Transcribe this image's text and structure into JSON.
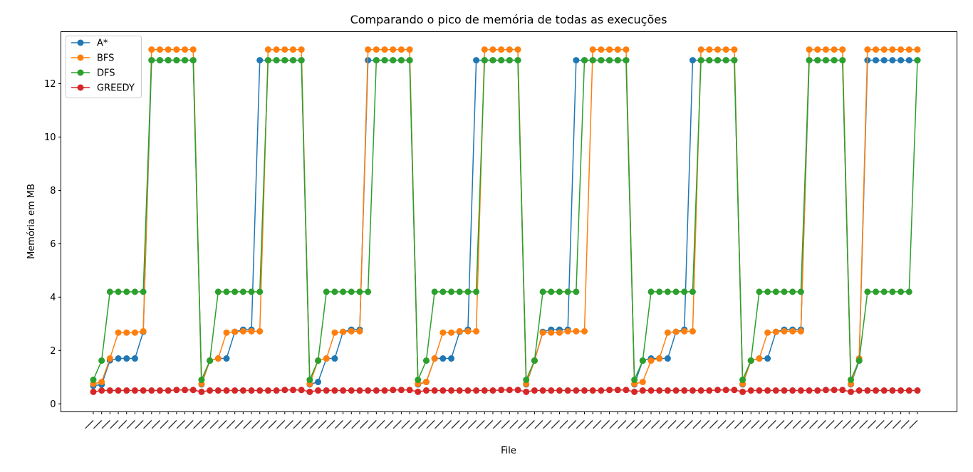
{
  "chart_data": {
    "type": "line",
    "title": "Comparando o pico de memória de todas as execuções",
    "xlabel": "File",
    "ylabel": "Memória em MB",
    "ylim": [
      -0.3,
      13.95
    ],
    "yticks": [
      0,
      2,
      4,
      6,
      8,
      10,
      12
    ],
    "grid": false,
    "legend_position": "upper left",
    "markers": "circle",
    "series": [
      {
        "name": "A*",
        "color": "#1f77b4",
        "values": [
          0.68,
          0.72,
          1.63,
          1.7,
          1.7,
          1.7,
          2.7,
          12.88,
          12.88,
          12.88,
          12.88,
          12.88,
          12.88,
          0.73,
          1.62,
          1.7,
          1.7,
          2.7,
          2.78,
          2.78,
          12.88,
          12.88,
          12.88,
          12.88,
          12.88,
          12.88,
          0.73,
          0.82,
          1.7,
          1.7,
          2.7,
          2.78,
          2.78,
          12.88,
          12.88,
          12.88,
          12.88,
          12.88,
          12.88,
          0.73,
          0.82,
          1.7,
          1.7,
          1.7,
          2.7,
          2.78,
          12.88,
          12.88,
          12.88,
          12.88,
          12.88,
          12.88,
          0.73,
          1.62,
          2.7,
          2.78,
          2.78,
          2.78,
          12.88,
          12.88,
          12.88,
          12.88,
          12.88,
          12.88,
          12.88,
          0.73,
          1.62,
          1.7,
          1.7,
          1.7,
          2.7,
          2.78,
          12.88,
          12.88,
          12.88,
          12.88,
          12.88,
          12.88,
          0.73,
          1.62,
          1.7,
          1.7,
          2.7,
          2.78,
          2.78,
          2.78,
          12.88,
          12.88,
          12.88,
          12.88,
          12.88,
          0.73,
          1.62,
          12.88,
          12.88,
          12.88,
          12.88,
          12.88,
          12.88,
          12.88
        ]
      },
      {
        "name": "BFS",
        "color": "#ff7f0e",
        "values": [
          0.75,
          0.82,
          1.7,
          2.67,
          2.67,
          2.67,
          2.72,
          13.28,
          13.28,
          13.28,
          13.28,
          13.28,
          13.28,
          0.75,
          1.62,
          1.7,
          2.67,
          2.7,
          2.72,
          2.72,
          2.72,
          13.28,
          13.28,
          13.28,
          13.28,
          13.28,
          0.75,
          1.62,
          1.7,
          2.67,
          2.7,
          2.72,
          2.72,
          13.28,
          13.28,
          13.28,
          13.28,
          13.28,
          13.28,
          0.75,
          0.82,
          1.7,
          2.67,
          2.67,
          2.72,
          2.72,
          2.72,
          13.28,
          13.28,
          13.28,
          13.28,
          13.28,
          0.75,
          1.62,
          2.67,
          2.67,
          2.67,
          2.72,
          2.72,
          2.72,
          13.28,
          13.28,
          13.28,
          13.28,
          13.28,
          0.75,
          0.82,
          1.62,
          1.7,
          2.67,
          2.7,
          2.72,
          2.72,
          13.28,
          13.28,
          13.28,
          13.28,
          13.28,
          0.75,
          1.62,
          1.7,
          2.67,
          2.7,
          2.72,
          2.72,
          2.72,
          13.28,
          13.28,
          13.28,
          13.28,
          13.28,
          0.75,
          1.7,
          13.28,
          13.28,
          13.28,
          13.28,
          13.28,
          13.28,
          13.28
        ]
      },
      {
        "name": "DFS",
        "color": "#2ca02c",
        "values": [
          0.9,
          1.62,
          4.2,
          4.2,
          4.2,
          4.2,
          4.2,
          12.88,
          12.88,
          12.88,
          12.88,
          12.88,
          12.88,
          0.9,
          1.62,
          4.2,
          4.2,
          4.2,
          4.2,
          4.2,
          4.2,
          12.88,
          12.88,
          12.88,
          12.88,
          12.88,
          0.9,
          1.62,
          4.2,
          4.2,
          4.2,
          4.2,
          4.2,
          4.2,
          12.88,
          12.88,
          12.88,
          12.88,
          12.88,
          0.9,
          1.62,
          4.2,
          4.2,
          4.2,
          4.2,
          4.2,
          4.2,
          12.88,
          12.88,
          12.88,
          12.88,
          12.88,
          0.9,
          1.62,
          4.2,
          4.2,
          4.2,
          4.2,
          4.2,
          12.88,
          12.88,
          12.88,
          12.88,
          12.88,
          12.88,
          0.9,
          1.62,
          4.2,
          4.2,
          4.2,
          4.2,
          4.2,
          4.2,
          12.88,
          12.88,
          12.88,
          12.88,
          12.88,
          0.9,
          1.62,
          4.2,
          4.2,
          4.2,
          4.2,
          4.2,
          4.2,
          12.88,
          12.88,
          12.88,
          12.88,
          12.88,
          0.9,
          1.62,
          4.2,
          4.2,
          4.2,
          4.2,
          4.2,
          4.2,
          12.88
        ]
      },
      {
        "name": "GREEDY",
        "color": "#d62728",
        "values": [
          0.45,
          0.5,
          0.5,
          0.5,
          0.5,
          0.5,
          0.5,
          0.5,
          0.5,
          0.5,
          0.52,
          0.52,
          0.52,
          0.45,
          0.5,
          0.5,
          0.5,
          0.5,
          0.5,
          0.5,
          0.5,
          0.5,
          0.5,
          0.52,
          0.52,
          0.52,
          0.45,
          0.5,
          0.5,
          0.5,
          0.5,
          0.5,
          0.5,
          0.5,
          0.5,
          0.5,
          0.52,
          0.52,
          0.52,
          0.45,
          0.5,
          0.5,
          0.5,
          0.5,
          0.5,
          0.5,
          0.5,
          0.5,
          0.5,
          0.52,
          0.52,
          0.52,
          0.45,
          0.5,
          0.5,
          0.5,
          0.5,
          0.5,
          0.5,
          0.5,
          0.5,
          0.5,
          0.52,
          0.52,
          0.52,
          0.45,
          0.5,
          0.5,
          0.5,
          0.5,
          0.5,
          0.5,
          0.5,
          0.5,
          0.5,
          0.52,
          0.52,
          0.52,
          0.45,
          0.5,
          0.5,
          0.5,
          0.5,
          0.5,
          0.5,
          0.5,
          0.5,
          0.5,
          0.52,
          0.52,
          0.52,
          0.45,
          0.5,
          0.5,
          0.5,
          0.5,
          0.5,
          0.5,
          0.5,
          0.5
        ]
      }
    ]
  }
}
